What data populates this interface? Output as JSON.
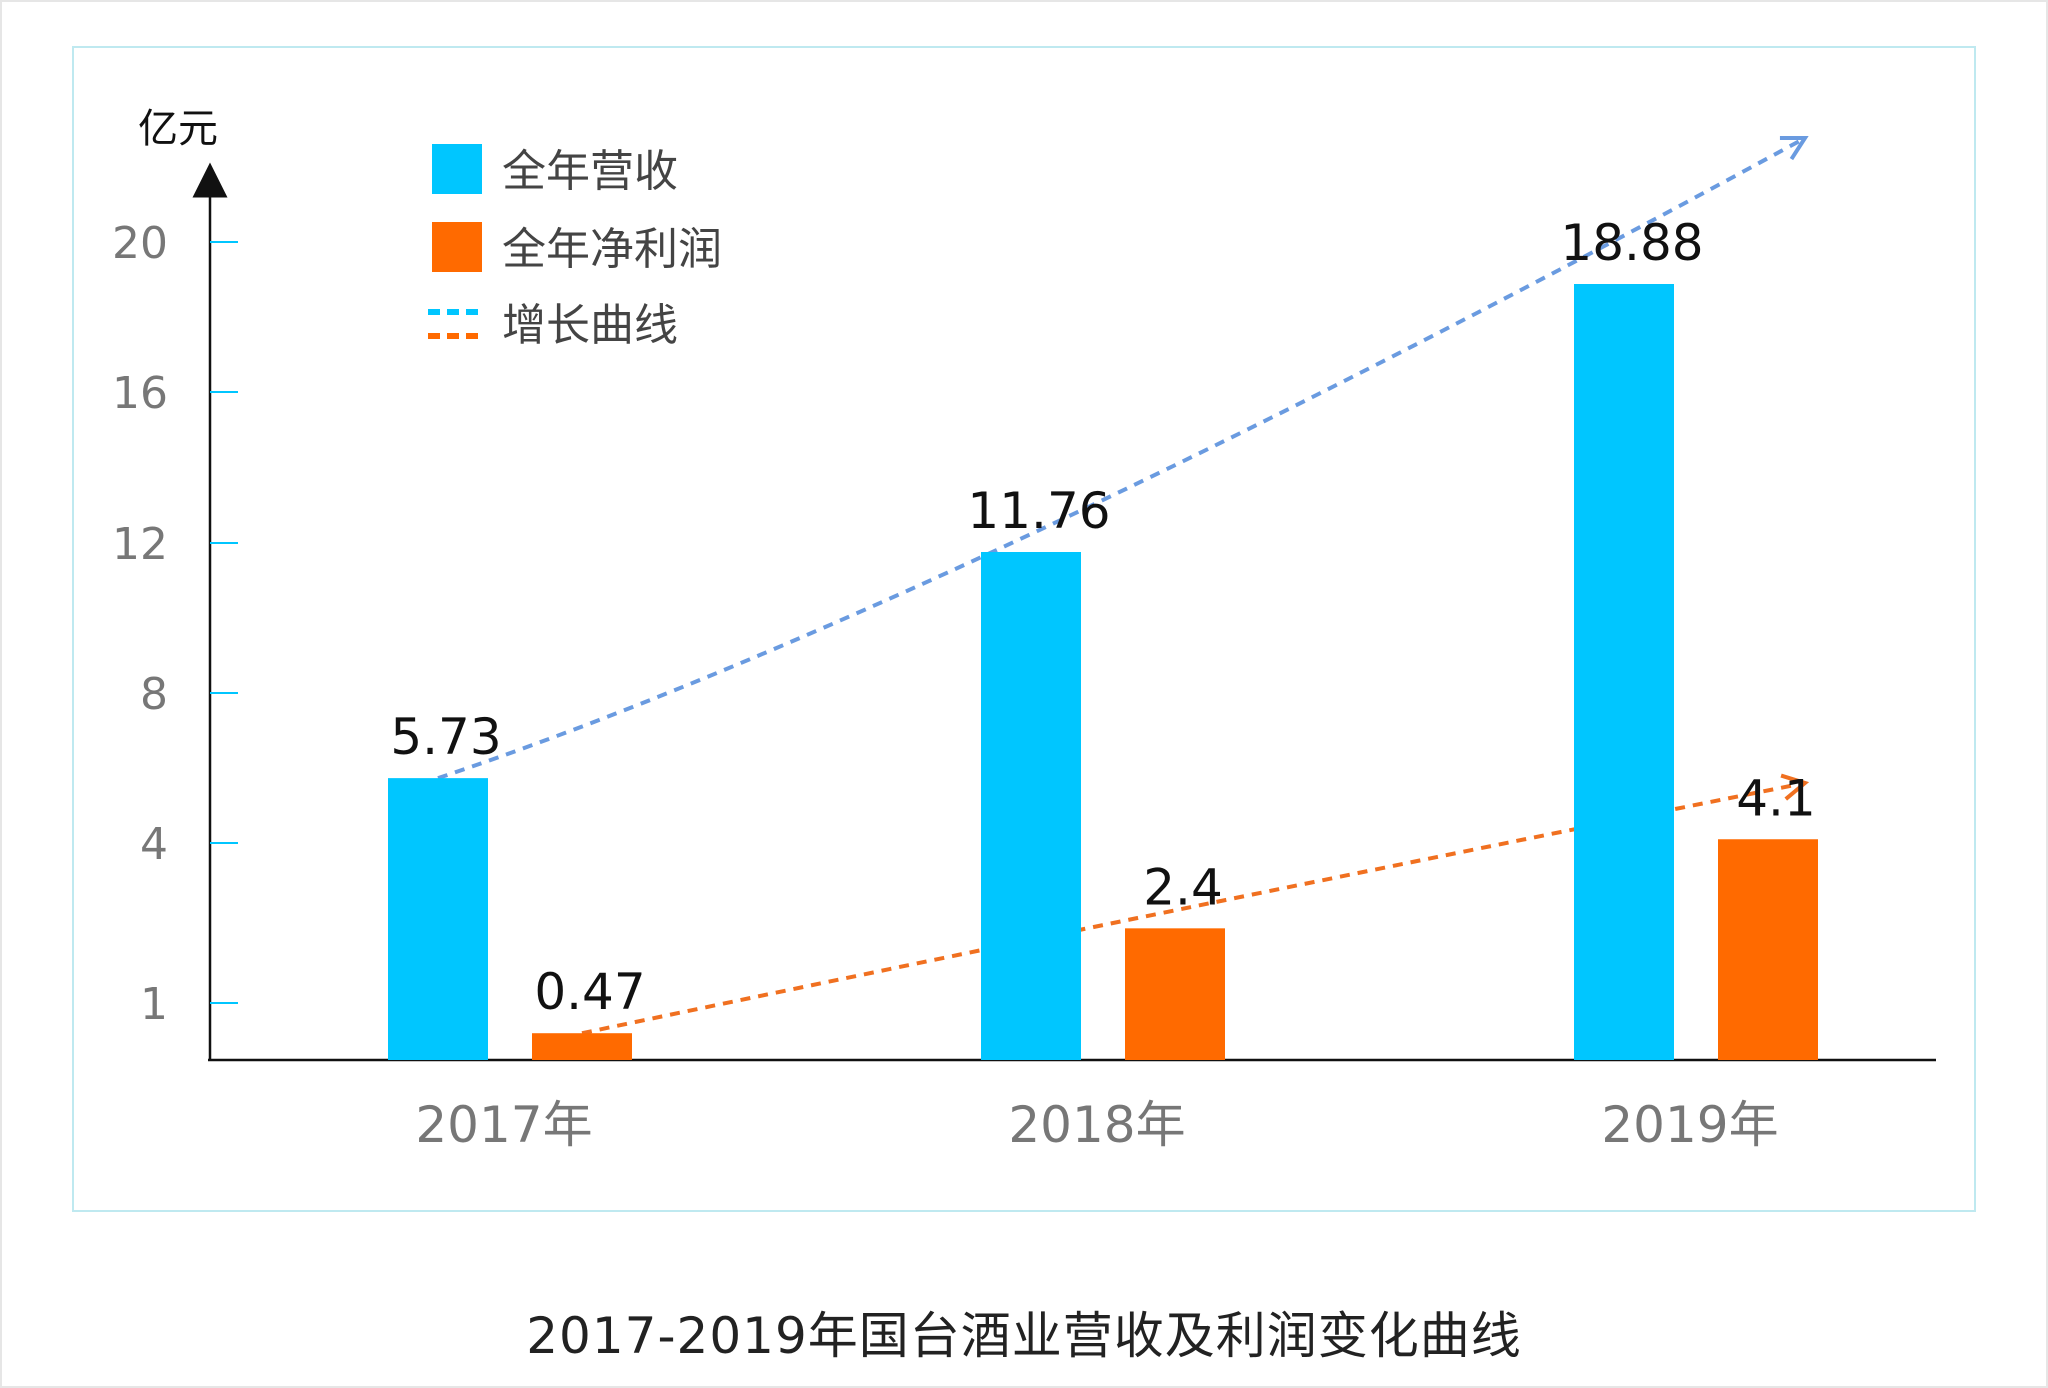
{
  "caption": "2017-2019年国台酒业营收及利润变化曲线",
  "chart_data": {
    "type": "bar",
    "title": "",
    "unit_label": "亿元",
    "categories": [
      "2017年",
      "2018年",
      "2019年"
    ],
    "series": [
      {
        "name": "全年营收",
        "color": "#00c6ff",
        "values": [
          5.73,
          11.76,
          18.88
        ]
      },
      {
        "name": "全年净利润",
        "color": "#ff6a00",
        "values": [
          0.47,
          2.4,
          4.1
        ]
      }
    ],
    "trend_legend": {
      "name": "增长曲线",
      "colors": [
        "#00c6ff",
        "#ff6a00"
      ]
    },
    "trend_colors": [
      "#6a9be0",
      "#f07020"
    ],
    "yticks": [
      "1",
      "4",
      "8",
      "12",
      "16",
      "20"
    ],
    "value_labels": [
      [
        "5.73",
        "11.76",
        "18.88"
      ],
      [
        "0.47",
        "2.4",
        "4.1"
      ]
    ],
    "legend_position": "top-left",
    "grid": false
  }
}
